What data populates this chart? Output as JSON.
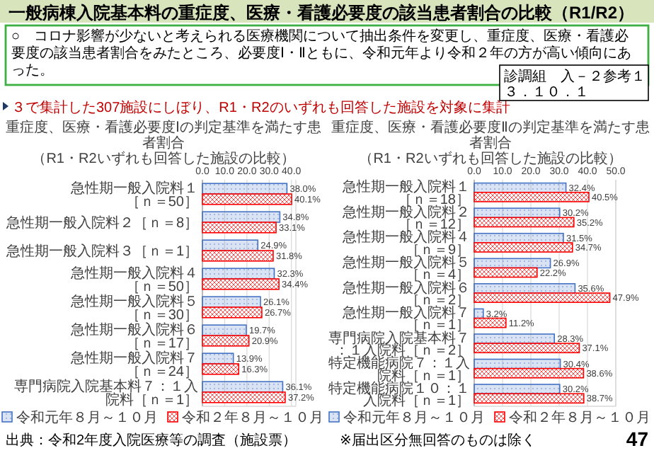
{
  "chart_data": [
    {
      "type": "bar",
      "orientation": "horizontal",
      "title": "重症度、医療・看護必要度Ⅰの判定基準を満たす患者割合",
      "subtitle": "（R1・R2いずれも回答した施設の比較）",
      "categories": [
        "急性期一般入院料１［ｎ＝50］",
        "急性期一般入院料２［ｎ＝8］",
        "急性期一般入院料３［ｎ＝1］",
        "急性期一般入院料４［ｎ＝50］",
        "急性期一般入院料５［ｎ＝30］",
        "急性期一般入院料６［ｎ＝17］",
        "急性期一般入院料７［ｎ＝24］",
        "専門病院入院基本料７：１入院料［ｎ＝1］"
      ],
      "series": [
        {
          "name": "令和元年８月～１０月",
          "color": "#4472c4",
          "values": [
            38.0,
            34.8,
            24.9,
            32.3,
            26.1,
            19.7,
            13.9,
            36.1
          ],
          "value_labels": [
            "38.0%",
            "34.8%",
            "24.9%",
            "32.3%",
            "26.1%",
            "19.7%",
            "13.9%",
            "36.1%"
          ]
        },
        {
          "name": "令和２年８月～１０月",
          "color": "#ff0000",
          "values": [
            40.1,
            33.1,
            31.8,
            34.4,
            26.7,
            20.9,
            16.3,
            37.2
          ],
          "value_labels": [
            "40.1%",
            "33.1%",
            "31.8%",
            "34.4%",
            "26.7%",
            "20.9%",
            "16.3%",
            "37.2%"
          ]
        }
      ],
      "xlim": [
        0,
        42
      ],
      "xticks": [
        {
          "value": 0,
          "label": "0.0"
        },
        {
          "value": 10,
          "label": "10.0"
        },
        {
          "value": 20,
          "label": "20.0"
        },
        {
          "value": 30,
          "label": "30.0"
        },
        {
          "value": 40,
          "label": "40.0"
        }
      ],
      "grid": "x",
      "legend": "bottom",
      "annotations": [
        "一般病棟入院基本料の重症度、医療・看護必要度の該当患者割合の比較（R1/R2）",
        "○　コロナ影響が少ないと考えられる医療機関について抽出条件を変更し、重症度、医療・看護必要度の該当患者割合をみたところ、必要度Ⅰ・Ⅱともに、令和元年より令和２年の方が高い傾向にあった。",
        "３で集計した307施設にしぼり、R1・R2のいずれも回答した施設を対象に集計",
        "診調組　入－２参考１",
        "３．１０．１",
        "出典：令和2年度入院医療等の調査（施設票）",
        "※届出区分無回答のものは除く",
        "47"
      ]
    },
    {
      "type": "bar",
      "orientation": "horizontal",
      "title": "重症度、医療・看護必要度Ⅱの判定基準を満たす患者割合",
      "subtitle": "（R1・R2いずれも回答した施設の比較）",
      "categories": [
        "急性期一般入院料１［ｎ＝18］",
        "急性期一般入院料２［ｎ＝12］",
        "急性期一般入院料４［ｎ＝9］",
        "急性期一般入院料５［ｎ＝4］",
        "急性期一般入院料６［ｎ＝2］",
        "急性期一般入院料７［ｎ＝1］",
        "専門病院入院基本料７：１入院料［ｎ＝2］",
        "特定機能病院７：１入院料［ｎ＝1］",
        "特定機能病院１０：１入院料［ｎ＝1］"
      ],
      "series": [
        {
          "name": "令和元年８月～１０月",
          "color": "#4472c4",
          "values": [
            32.4,
            30.2,
            31.5,
            26.9,
            35.6,
            3.2,
            28.3,
            30.4,
            30.2
          ],
          "value_labels": [
            "32.4%",
            "30.2%",
            "31.5%",
            "26.9%",
            "35.6%",
            "3.2%",
            "28.3%",
            "30.4%",
            "30.2%"
          ]
        },
        {
          "name": "令和２年８月～１０月",
          "color": "#ff0000",
          "values": [
            40.5,
            35.2,
            34.7,
            22.2,
            47.9,
            11.2,
            37.1,
            38.6,
            38.7
          ],
          "value_labels": [
            "40.5%",
            "35.2%",
            "34.7%",
            "22.2%",
            "47.9%",
            "11.2%",
            "37.1%",
            "38.6%",
            "38.7%"
          ]
        }
      ],
      "xlim": [
        0,
        50
      ],
      "xticks": [
        {
          "value": 0,
          "label": "0.0"
        },
        {
          "value": 10,
          "label": "10.0"
        },
        {
          "value": 20,
          "label": "20.0"
        },
        {
          "value": 30,
          "label": "30.0"
        },
        {
          "value": 40,
          "label": "40.0"
        },
        {
          "value": 50,
          "label": "50.0"
        }
      ],
      "grid": "x",
      "legend": "bottom"
    }
  ]
}
